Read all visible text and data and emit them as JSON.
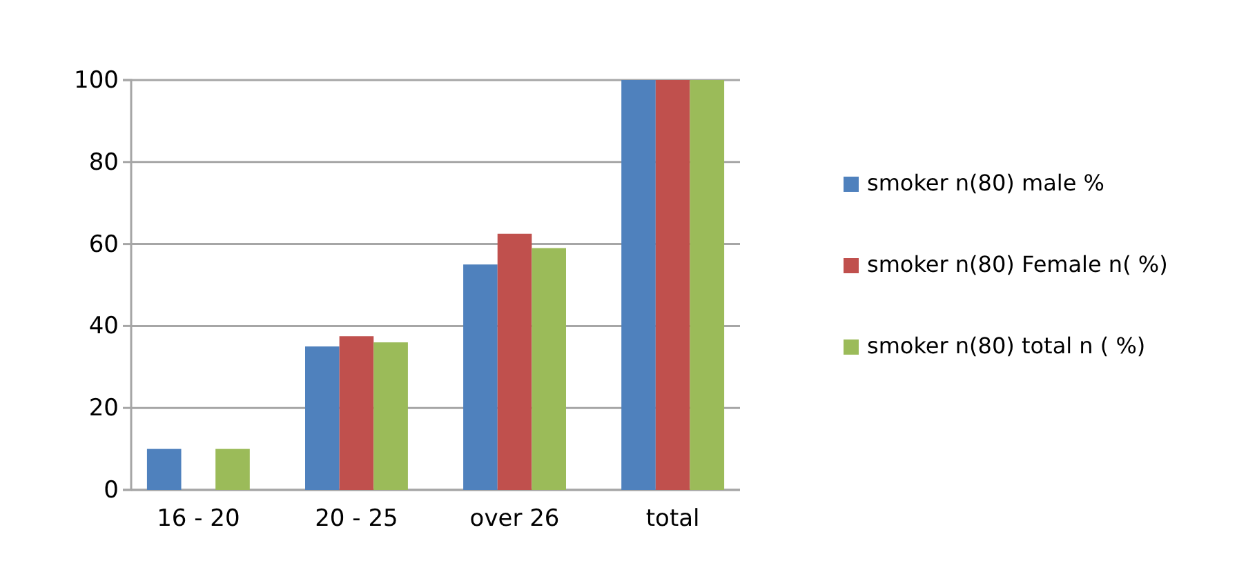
{
  "chart_data": {
    "type": "bar",
    "categories": [
      "16 - 20",
      "20 - 25",
      "over 26",
      "total"
    ],
    "series": [
      {
        "name": "smoker n(80) male %",
        "color": "#4f81bd",
        "values": [
          10,
          35,
          55,
          100
        ]
      },
      {
        "name": "smoker n(80) Female n( %)",
        "color": "#c0504d",
        "values": [
          0,
          37.5,
          62.5,
          100
        ]
      },
      {
        "name": "smoker n(80) total n ( %)",
        "color": "#9bbb59",
        "values": [
          10,
          36,
          59,
          100
        ]
      }
    ],
    "ylim": [
      0,
      100
    ],
    "yticks": [
      0,
      20,
      40,
      60,
      80,
      100
    ],
    "grid": "y",
    "legend": "right"
  }
}
